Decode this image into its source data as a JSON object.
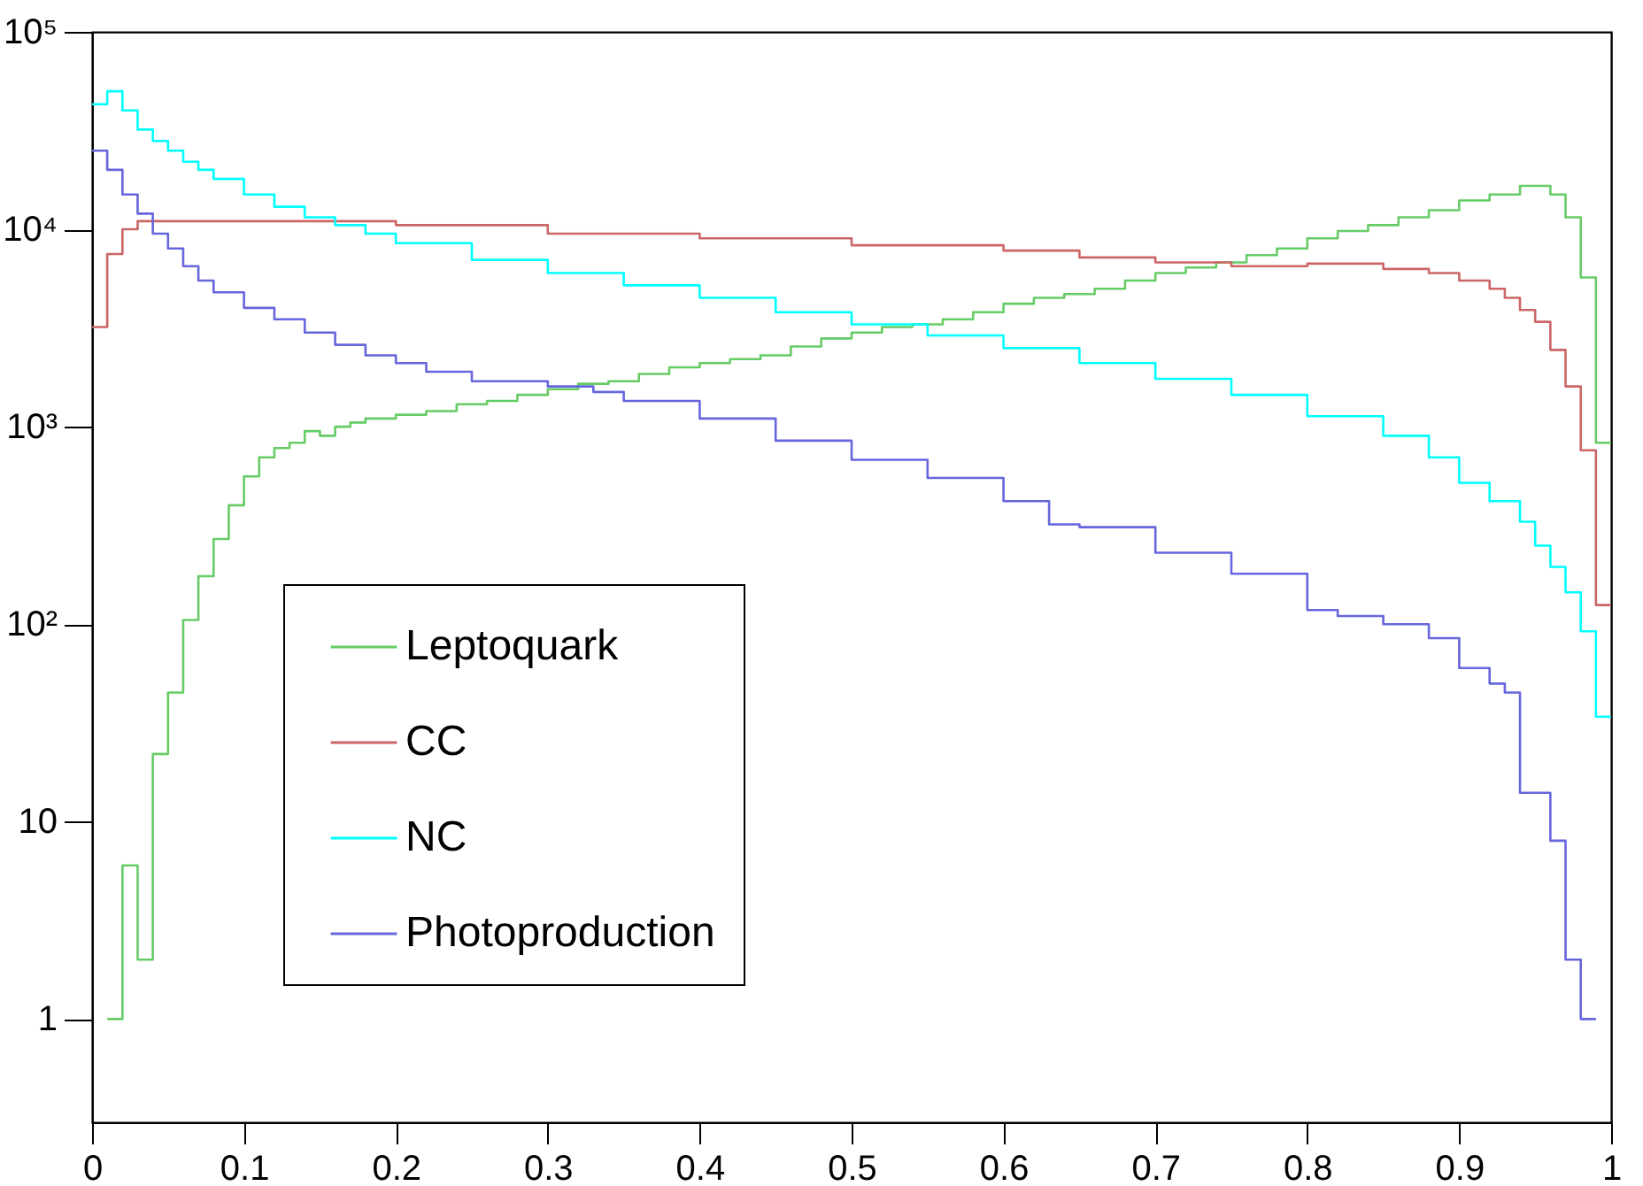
{
  "chart_data": {
    "type": "step",
    "xlim": [
      0,
      1
    ],
    "xticks": [
      0,
      0.1,
      0.2,
      0.3,
      0.4,
      0.5,
      0.6,
      0.7,
      0.8,
      0.9,
      1
    ],
    "ylim": [
      0.3,
      100000
    ],
    "yticks": [
      {
        "value": 1,
        "label": "1"
      },
      {
        "value": 10,
        "label": "10"
      },
      {
        "value": 100,
        "label": "10²"
      },
      {
        "value": 1000,
        "label": "10³"
      },
      {
        "value": 10000,
        "label": "10⁴"
      },
      {
        "value": 100000,
        "label": "10⁵"
      }
    ],
    "log": "y",
    "grid": false,
    "legend": "bottom left",
    "line_style": "solid",
    "marker": "none",
    "series": [
      {
        "name": "Leptoquark",
        "color": "#66cc66",
        "x": [
          0.01,
          0.02,
          0.03,
          0.04,
          0.05,
          0.06,
          0.07,
          0.08,
          0.09,
          0.1,
          0.11,
          0.12,
          0.13,
          0.14,
          0.15,
          0.16,
          0.17,
          0.18,
          0.2,
          0.22,
          0.24,
          0.26,
          0.28,
          0.3,
          0.32,
          0.34,
          0.36,
          0.38,
          0.4,
          0.42,
          0.44,
          0.46,
          0.48,
          0.5,
          0.52,
          0.54,
          0.56,
          0.58,
          0.6,
          0.62,
          0.64,
          0.66,
          0.68,
          0.7,
          0.72,
          0.74,
          0.76,
          0.78,
          0.8,
          0.82,
          0.84,
          0.86,
          0.88,
          0.9,
          0.92,
          0.94,
          0.96,
          0.97,
          0.98,
          0.99,
          1
        ],
        "values": [
          1,
          6,
          2,
          22,
          45,
          105,
          175,
          270,
          400,
          560,
          700,
          780,
          830,
          950,
          900,
          1000,
          1050,
          1100,
          1150,
          1200,
          1300,
          1350,
          1450,
          1550,
          1650,
          1700,
          1850,
          2000,
          2100,
          2200,
          2300,
          2550,
          2800,
          3000,
          3200,
          3300,
          3500,
          3800,
          4200,
          4500,
          4700,
          5000,
          5500,
          6000,
          6400,
          6800,
          7400,
          8000,
          9000,
          9800,
          10500,
          11500,
          12500,
          14000,
          15000,
          16600,
          15000,
          11500,
          5700,
          830,
          830
        ]
      },
      {
        "name": "CC",
        "color": "#cc6666",
        "x": [
          0,
          0.01,
          0.02,
          0.03,
          0.1,
          0.2,
          0.3,
          0.4,
          0.5,
          0.6,
          0.65,
          0.7,
          0.75,
          0.8,
          0.85,
          0.88,
          0.9,
          0.92,
          0.93,
          0.94,
          0.95,
          0.96,
          0.97,
          0.98,
          0.99,
          1
        ],
        "values": [
          3200,
          7500,
          10000,
          11000,
          11000,
          10500,
          9500,
          9000,
          8300,
          7800,
          7200,
          6800,
          6500,
          6700,
          6300,
          6000,
          5500,
          5000,
          4500,
          3900,
          3400,
          2450,
          1600,
          760,
          125,
          125
        ]
      },
      {
        "name": "NC",
        "color": "#00ffff",
        "x": [
          0,
          0.01,
          0.02,
          0.03,
          0.04,
          0.05,
          0.06,
          0.07,
          0.08,
          0.1,
          0.12,
          0.14,
          0.16,
          0.18,
          0.2,
          0.25,
          0.3,
          0.35,
          0.4,
          0.45,
          0.5,
          0.55,
          0.6,
          0.65,
          0.7,
          0.75,
          0.8,
          0.85,
          0.88,
          0.9,
          0.92,
          0.94,
          0.95,
          0.96,
          0.97,
          0.98,
          0.99,
          1
        ],
        "values": [
          43000,
          50000,
          40000,
          32000,
          28000,
          25000,
          22000,
          20000,
          18000,
          15000,
          13000,
          11500,
          10500,
          9500,
          8500,
          7000,
          6000,
          5200,
          4500,
          3800,
          3300,
          2900,
          2500,
          2100,
          1750,
          1450,
          1130,
          900,
          700,
          520,
          420,
          330,
          250,
          195,
          145,
          92,
          34,
          34
        ]
      },
      {
        "name": "Photoproduction",
        "color": "#6666dd",
        "x": [
          0,
          0.01,
          0.02,
          0.03,
          0.04,
          0.05,
          0.06,
          0.07,
          0.08,
          0.1,
          0.12,
          0.14,
          0.16,
          0.18,
          0.2,
          0.22,
          0.25,
          0.3,
          0.33,
          0.35,
          0.4,
          0.45,
          0.5,
          0.55,
          0.6,
          0.63,
          0.65,
          0.7,
          0.75,
          0.8,
          0.82,
          0.85,
          0.88,
          0.9,
          0.92,
          0.93,
          0.94,
          0.96,
          0.97,
          0.98,
          0.99
        ],
        "values": [
          25000,
          20000,
          15000,
          12000,
          9500,
          8000,
          6500,
          5500,
          4800,
          4000,
          3500,
          3000,
          2600,
          2300,
          2100,
          1900,
          1700,
          1600,
          1500,
          1350,
          1100,
          850,
          680,
          550,
          420,
          320,
          310,
          230,
          180,
          118,
          110,
          100,
          85,
          60,
          50,
          45,
          14,
          8,
          2,
          1,
          1
        ]
      }
    ]
  }
}
